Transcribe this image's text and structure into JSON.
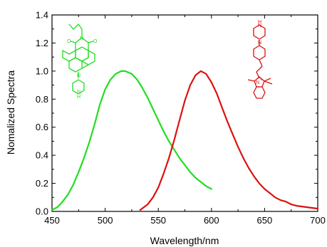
{
  "chart_data": {
    "type": "line",
    "title": "",
    "xlabel": "Wavelength/nm",
    "ylabel": "Nomalized Spectra",
    "xlim": [
      450,
      700
    ],
    "ylim": [
      0.0,
      1.4
    ],
    "xticks": [
      "450",
      "500",
      "550",
      "600",
      "650",
      "700"
    ],
    "yticks": [
      "0.0",
      "0.2",
      "0.4",
      "0.6",
      "0.8",
      "1.0",
      "1.2",
      "1.4"
    ],
    "grid": false,
    "legend": "none",
    "series": [
      {
        "color": "#22dd22",
        "x": [
          450,
          455,
          460,
          465,
          470,
          475,
          480,
          485,
          490,
          495,
          500,
          505,
          510,
          515,
          519,
          525,
          530,
          535,
          540,
          545,
          550,
          555,
          560,
          565,
          570,
          575,
          580,
          585,
          590,
          595,
          600
        ],
        "y": [
          0.01,
          0.03,
          0.07,
          0.12,
          0.19,
          0.28,
          0.38,
          0.49,
          0.62,
          0.76,
          0.87,
          0.94,
          0.98,
          1.0,
          1.0,
          0.98,
          0.94,
          0.88,
          0.81,
          0.73,
          0.65,
          0.57,
          0.5,
          0.44,
          0.38,
          0.33,
          0.28,
          0.24,
          0.21,
          0.18,
          0.16
        ]
      },
      {
        "color": "#dd1111",
        "x": [
          533,
          540,
          545,
          550,
          555,
          560,
          565,
          570,
          575,
          580,
          585,
          590,
          595,
          600,
          605,
          610,
          615,
          620,
          625,
          630,
          635,
          640,
          645,
          650,
          655,
          660,
          665,
          670,
          675,
          680,
          685,
          690,
          695,
          700
        ],
        "y": [
          0.01,
          0.05,
          0.1,
          0.17,
          0.27,
          0.38,
          0.51,
          0.65,
          0.79,
          0.9,
          0.97,
          1.0,
          0.98,
          0.92,
          0.84,
          0.74,
          0.64,
          0.55,
          0.46,
          0.38,
          0.31,
          0.25,
          0.2,
          0.16,
          0.13,
          0.1,
          0.08,
          0.07,
          0.05,
          0.04,
          0.035,
          0.03,
          0.025,
          0.02
        ]
      }
    ]
  },
  "structures": {
    "green_labels": [
      "O",
      "N",
      "O",
      "N",
      "N",
      "H"
    ],
    "red_labels": [
      "H",
      "N",
      "N",
      "N",
      "+"
    ]
  }
}
